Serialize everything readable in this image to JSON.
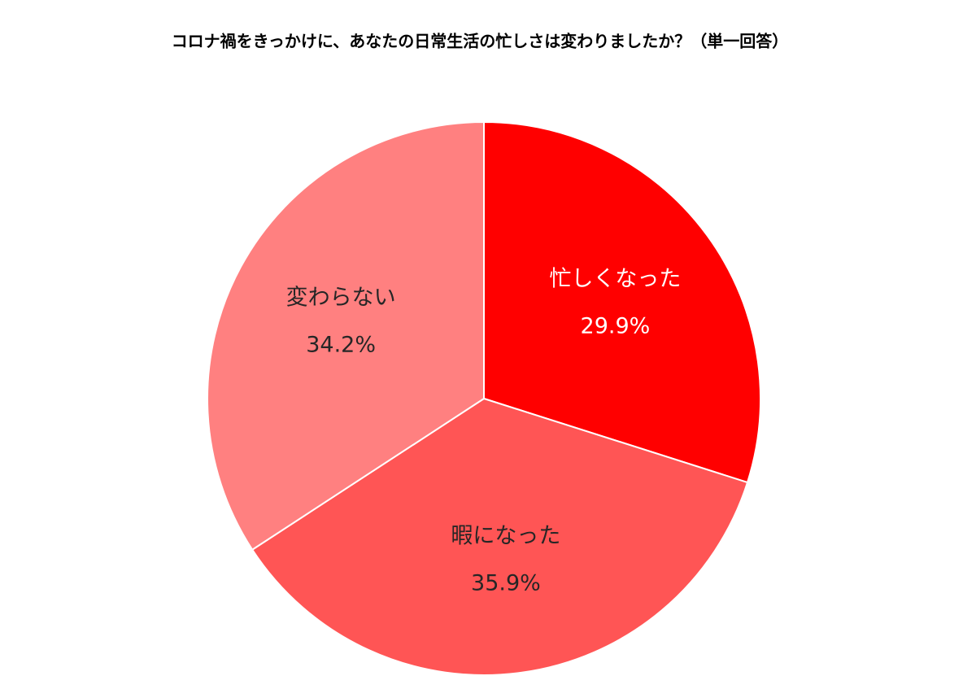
{
  "chart_data": {
    "type": "pie",
    "title": "コロナ禍をきっかけに、あなたの日常生活の忙しさは変わりましたか？（単一回答）",
    "categories": [
      "忙しくなった",
      "暇になった",
      "変わらない"
    ],
    "values": [
      29.9,
      35.9,
      34.2
    ],
    "value_labels": [
      "29.9%",
      "35.9%",
      "34.2%"
    ],
    "colors": [
      "#ff0000",
      "#ff5555",
      "#ff8080"
    ],
    "label_colors": [
      "#ffffff",
      "#262626",
      "#262626"
    ]
  }
}
